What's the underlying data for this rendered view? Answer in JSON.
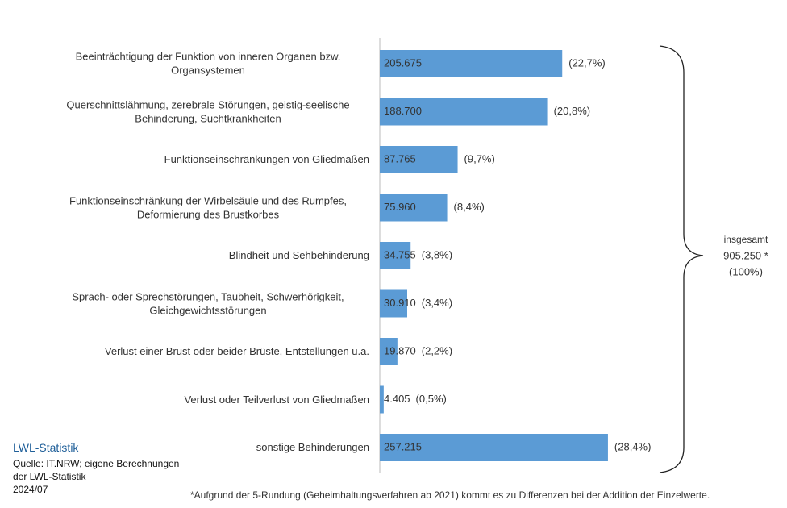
{
  "chart_data": {
    "type": "hbar",
    "categories": [
      "Beeinträchtigung der Funktion von inneren Organen bzw. Organsystemen",
      "Querschnittslähmung, zerebrale Störungen, geistig-seelische Behinderung, Suchtkrankheiten",
      "Funktionseinschränkungen von Gliedmaßen",
      "Funktionseinschränkung der Wirbelsäule und des Rumpfes, Deformierung des Brustkorbes",
      "Blindheit und Sehbehinderung",
      "Sprach- oder Sprechstörungen, Taubheit, Schwerhörigkeit, Gleichgewichtsstörungen",
      "Verlust einer Brust oder beider Brüste, Entstellungen u.a.",
      "Verlust oder Teilverlust von Gliedmaßen",
      "sonstige Behinderungen"
    ],
    "values": [
      205675,
      188700,
      87765,
      75960,
      34755,
      30910,
      19870,
      4405,
      257215
    ],
    "value_labels": [
      "205.675",
      "188.700",
      "87.765",
      "75.960",
      "34.755",
      "30.910",
      "19.870",
      "4.405",
      "257.215"
    ],
    "share_labels": [
      "(22,7%)",
      "(20,8%)",
      "(9,7%)",
      "(8,4%)",
      "(3,8%)",
      "(3,4%)",
      "(2,2%)",
      "(0,5%)",
      "(28,4%)"
    ],
    "color": "#5b9bd5",
    "xlim": [
      0,
      260000
    ],
    "total_annotation": [
      "insgesamt",
      "905.250 *",
      "(100%)"
    ],
    "source": [
      "LWL-Statistik",
      "Quelle: IT.NRW; eigene Berechnungen",
      "der LWL-Statistik",
      "2024/07"
    ],
    "footnote": "*Aufgrund der 5-Rundung (Geheimhaltungsverfahren ab 2021) kommt es zu Differenzen bei der Addition der Einzelwerte."
  }
}
